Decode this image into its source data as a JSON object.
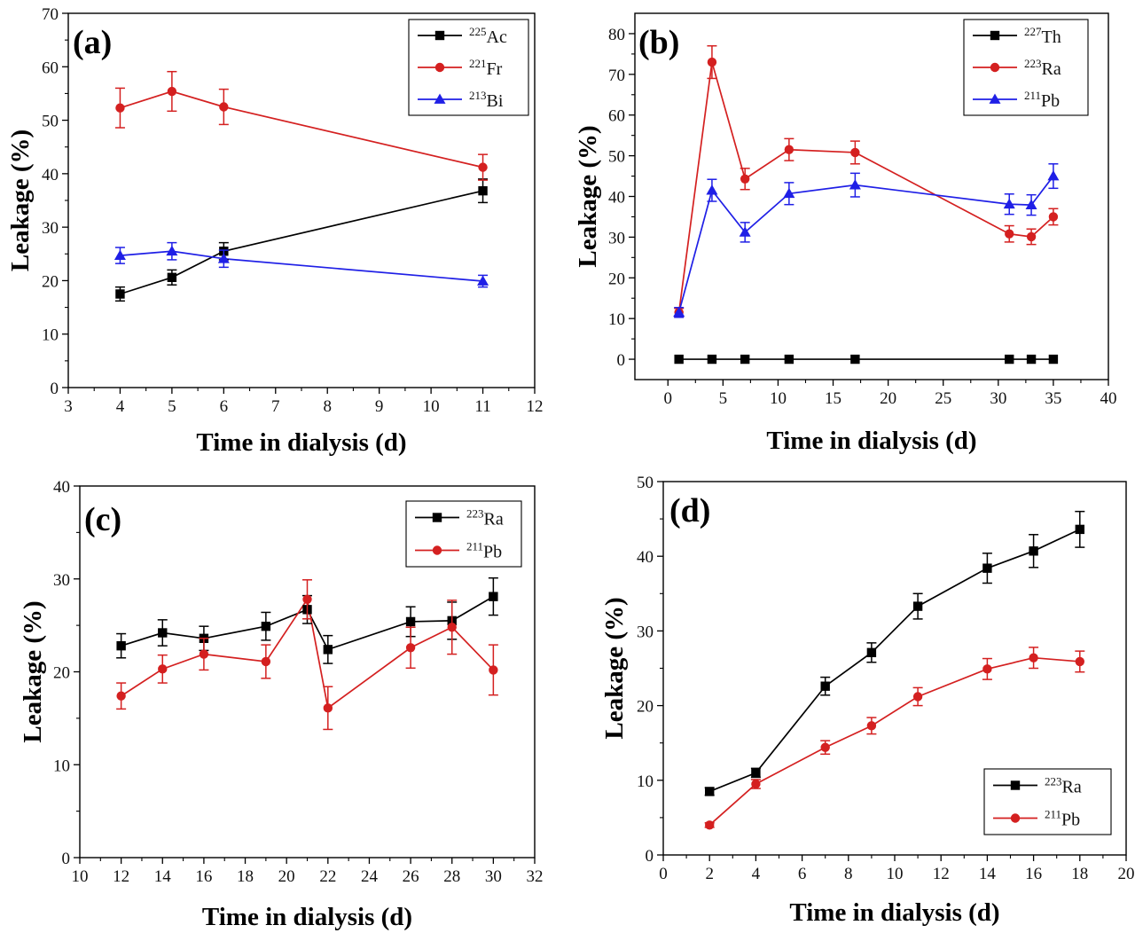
{
  "chart_data": [
    {
      "type": "line",
      "panel_label": "(a)",
      "xlabel": "Time in dialysis (d)",
      "ylabel": "Leakage (%)",
      "xlim": [
        3,
        12
      ],
      "ylim": [
        0,
        70
      ],
      "xticks": [
        3,
        4,
        5,
        6,
        7,
        8,
        9,
        10,
        11,
        12
      ],
      "yticks": [
        0,
        10,
        20,
        30,
        40,
        50,
        60,
        70
      ],
      "legend_position": "top-right",
      "series": [
        {
          "name": "Ac",
          "mass": "225",
          "color": "#000000",
          "marker": "square",
          "x": [
            4,
            5,
            6,
            11
          ],
          "values": [
            17.5,
            20.6,
            25.5,
            36.8
          ],
          "errors": [
            1.3,
            1.4,
            1.6,
            2.2
          ]
        },
        {
          "name": "Fr",
          "mass": "221",
          "color": "#d42020",
          "marker": "circle",
          "x": [
            4,
            5,
            6,
            11
          ],
          "values": [
            52.3,
            55.4,
            52.5,
            41.2
          ],
          "errors": [
            3.7,
            3.7,
            3.3,
            2.4
          ]
        },
        {
          "name": "Bi",
          "mass": "213",
          "color": "#1f1fe6",
          "marker": "triangle",
          "x": [
            4,
            5,
            6,
            11
          ],
          "values": [
            24.7,
            25.5,
            24.1,
            19.9
          ],
          "errors": [
            1.5,
            1.6,
            1.6,
            1.1
          ]
        }
      ]
    },
    {
      "type": "line",
      "panel_label": "(b)",
      "xlabel": "Time in dialysis (d)",
      "ylabel": "Leakage (%)",
      "xlim": [
        -3,
        40
      ],
      "ylim": [
        -5,
        85
      ],
      "xticks": [
        0,
        5,
        10,
        15,
        20,
        25,
        30,
        35,
        40
      ],
      "yticks": [
        0,
        10,
        20,
        30,
        40,
        50,
        60,
        70,
        80
      ],
      "legend_position": "top-right",
      "series": [
        {
          "name": "Th",
          "mass": "227",
          "color": "#000000",
          "marker": "square",
          "x": [
            1,
            4,
            7,
            11,
            17,
            31,
            33,
            35
          ],
          "values": [
            0,
            0,
            0,
            0,
            0,
            0,
            0,
            0
          ],
          "errors": [
            0,
            0,
            0,
            0,
            0,
            0,
            0,
            0
          ]
        },
        {
          "name": "Ra",
          "mass": "223",
          "color": "#d42020",
          "marker": "circle",
          "x": [
            1,
            4,
            7,
            11,
            17,
            31,
            33,
            35
          ],
          "values": [
            11.5,
            73,
            44.3,
            51.5,
            50.8,
            30.8,
            30.1,
            35
          ],
          "errors": [
            1,
            4,
            2.6,
            2.7,
            2.8,
            2,
            1.9,
            2
          ]
        },
        {
          "name": "Pb",
          "mass": "211",
          "color": "#1f1fe6",
          "marker": "triangle",
          "x": [
            1,
            4,
            7,
            11,
            17,
            31,
            33,
            35
          ],
          "values": [
            11.5,
            41.5,
            31.2,
            40.7,
            42.8,
            38.1,
            37.9,
            45
          ],
          "errors": [
            1.2,
            2.7,
            2.4,
            2.7,
            2.9,
            2.5,
            2.5,
            3
          ]
        }
      ]
    },
    {
      "type": "line",
      "panel_label": "(c)",
      "xlabel": "Time in dialysis (d)",
      "ylabel": "Leakage (%)",
      "xlim": [
        10,
        32
      ],
      "ylim": [
        0,
        40
      ],
      "xticks": [
        10,
        12,
        14,
        16,
        18,
        20,
        22,
        24,
        26,
        28,
        30,
        32
      ],
      "yticks": [
        0,
        10,
        20,
        30,
        40
      ],
      "legend_position": "top-right",
      "series": [
        {
          "name": "Ra",
          "mass": "223",
          "color": "#000000",
          "marker": "square",
          "x": [
            12,
            14,
            16,
            19,
            21,
            22,
            26,
            28,
            30
          ],
          "values": [
            22.8,
            24.2,
            23.6,
            24.9,
            26.7,
            22.4,
            25.4,
            25.5,
            28.1
          ],
          "errors": [
            1.3,
            1.4,
            1.3,
            1.5,
            1.5,
            1.5,
            1.6,
            2,
            2
          ]
        },
        {
          "name": "Pb",
          "mass": "211",
          "color": "#d42020",
          "marker": "circle",
          "x": [
            12,
            14,
            16,
            19,
            21,
            22,
            26,
            28,
            30
          ],
          "values": [
            17.4,
            20.3,
            21.9,
            21.1,
            27.8,
            16.1,
            22.6,
            24.8,
            20.2
          ],
          "errors": [
            1.4,
            1.5,
            1.7,
            1.8,
            2.1,
            2.3,
            2.2,
            2.9,
            2.7
          ]
        }
      ]
    },
    {
      "type": "line",
      "panel_label": "(d)",
      "xlabel": "Time in dialysis (d)",
      "ylabel": "Leakage (%)",
      "xlim": [
        0,
        20
      ],
      "ylim": [
        0,
        50
      ],
      "xticks": [
        0,
        2,
        4,
        6,
        8,
        10,
        12,
        14,
        16,
        18,
        20
      ],
      "yticks": [
        0,
        10,
        20,
        30,
        40,
        50
      ],
      "legend_position": "bottom-right",
      "series": [
        {
          "name": "Ra",
          "mass": "223",
          "color": "#000000",
          "marker": "square",
          "x": [
            2,
            4,
            7,
            9,
            11,
            14,
            16,
            18
          ],
          "values": [
            8.5,
            11,
            22.6,
            27.1,
            33.3,
            38.4,
            40.7,
            43.6
          ],
          "errors": [
            0.5,
            0.6,
            1.2,
            1.3,
            1.7,
            2,
            2.2,
            2.4
          ]
        },
        {
          "name": "Pb",
          "mass": "211",
          "color": "#d42020",
          "marker": "circle",
          "x": [
            2,
            4,
            7,
            9,
            11,
            14,
            16,
            18
          ],
          "values": [
            4,
            9.5,
            14.4,
            17.3,
            21.2,
            24.9,
            26.4,
            25.9
          ],
          "errors": [
            0.3,
            0.6,
            0.9,
            1.1,
            1.2,
            1.4,
            1.4,
            1.4
          ]
        }
      ]
    }
  ]
}
